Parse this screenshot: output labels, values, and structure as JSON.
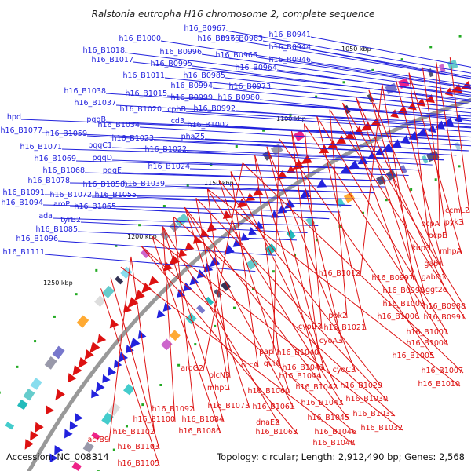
{
  "title": "Ralstonia eutropha H16 chromosome 2, complete sequence",
  "footer": {
    "accession": "Accession: NC_008314",
    "summary": "Topology: circular; Length: 2,912,490 bp; Genes: 2,568"
  },
  "colors": {
    "forward": "#2222dd",
    "reverse": "#dd1111",
    "backbone": "#999999",
    "gc_marker": "#22aa22"
  },
  "scale_ticks": [
    {
      "label": "1050 kbp"
    },
    {
      "label": "1100 kbp"
    },
    {
      "label": "1150 kbp"
    },
    {
      "label": "1200 kbp"
    },
    {
      "label": "1250 kbp"
    }
  ],
  "forward_genes": [
    "h16_B0941",
    "h16_B0967",
    "h16_B0944",
    "h16_B0976",
    "h16_B0963",
    "h16_B0946",
    "h16_B1000",
    "h16_B0966",
    "h16_B1018",
    "h16_B0996",
    "h16_B0964",
    "h16_B1017",
    "h16_B0995",
    "h16_B0985",
    "h16_B1011",
    "h16_B0973",
    "h16_B0994",
    "h16_B1038",
    "h16_B1015",
    "h16_B0999",
    "h16_B0980",
    "h16_B1037",
    "cphB",
    "h16_B0992",
    "h16_B1020",
    "hpd",
    "pqqB",
    "icd3",
    "h16_B1002",
    "h16_B1034",
    "h16_B1077",
    "phaZ5",
    "h16_B1059",
    "h16_B1023",
    "pqqC1",
    "h16_B1071",
    "h16_B1022",
    "h16_B1069",
    "pqqD",
    "h16_B1024",
    "h16_B1068",
    "pqqE",
    "h16_B1078",
    "h16_B1039",
    "h16_B1058",
    "h16_B1091",
    "h16_B1072",
    "h16_B1055",
    "h16_B1094",
    "aroP",
    "h16_B1065",
    "ada",
    "tyrB2",
    "h16_B1085",
    "h16_B1096",
    "h16_B1111"
  ],
  "reverse_genes": [
    "ccmL2",
    "pyk3",
    "pcpA",
    "pcpE",
    "kup3",
    "mhpA",
    "gabT",
    "h16_B1012",
    "h16_B0997",
    "gabD1",
    "h16_B0998",
    "ggt2c",
    "h16_B1003",
    "h16_B0988",
    "h16_B1006",
    "h16_B0991",
    "ppk2",
    "h16_B1021",
    "h16_B1001",
    "cyoD3",
    "h16_B1004",
    "cyoA3",
    "h16_B1040",
    "h16_B1005",
    "pap",
    "h16_B1041",
    "cyoC3",
    "quiA",
    "h16_B1044",
    "h16_B1007",
    "aroG2",
    "cccA",
    "h16_B1042",
    "h16_B1029",
    "h16_B1060",
    "h16_B1010",
    "plcN3",
    "h16_B1043",
    "h16_B1030",
    "mhpC",
    "h16_B1073",
    "h16_B1061",
    "h16_B1045",
    "h16_B1031",
    "h16_B1092",
    "h16_B1100",
    "h16_B1084",
    "dnaE2",
    "h16_B1032",
    "h16_B1086",
    "h16_B1063",
    "h16_B1046",
    "acrB9",
    "h16_B1102",
    "h16_B1048",
    "h16_B1103",
    "h16_B1105"
  ]
}
